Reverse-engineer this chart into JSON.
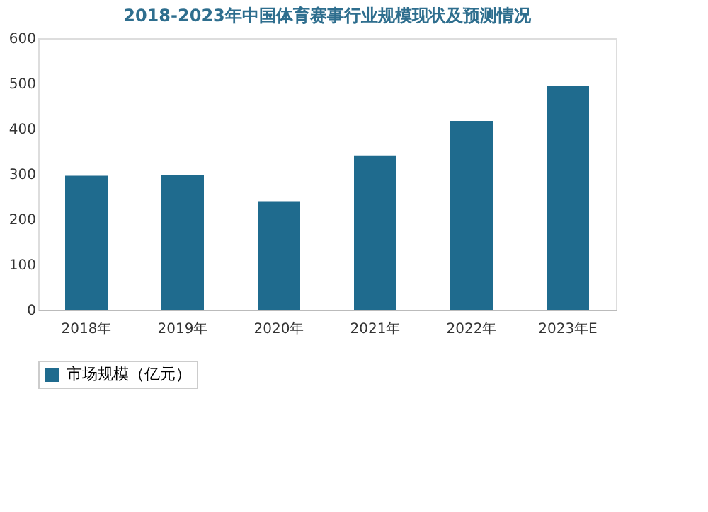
{
  "chart_data": {
    "type": "bar",
    "title": "2018-2023年中国体育赛事行业规模现状及预测情况",
    "categories": [
      "2018年",
      "2019年",
      "2020年",
      "2021年",
      "2022年",
      "2023年E"
    ],
    "series": [
      {
        "name": "市场规模（亿元）",
        "color": "#1f6b8e",
        "values": [
          296,
          298,
          240,
          341,
          417,
          495
        ]
      }
    ],
    "ylim": [
      0,
      600
    ],
    "yticks": [
      0,
      100,
      200,
      300,
      400,
      500,
      600
    ],
    "grid": false,
    "legend": "bottom"
  }
}
